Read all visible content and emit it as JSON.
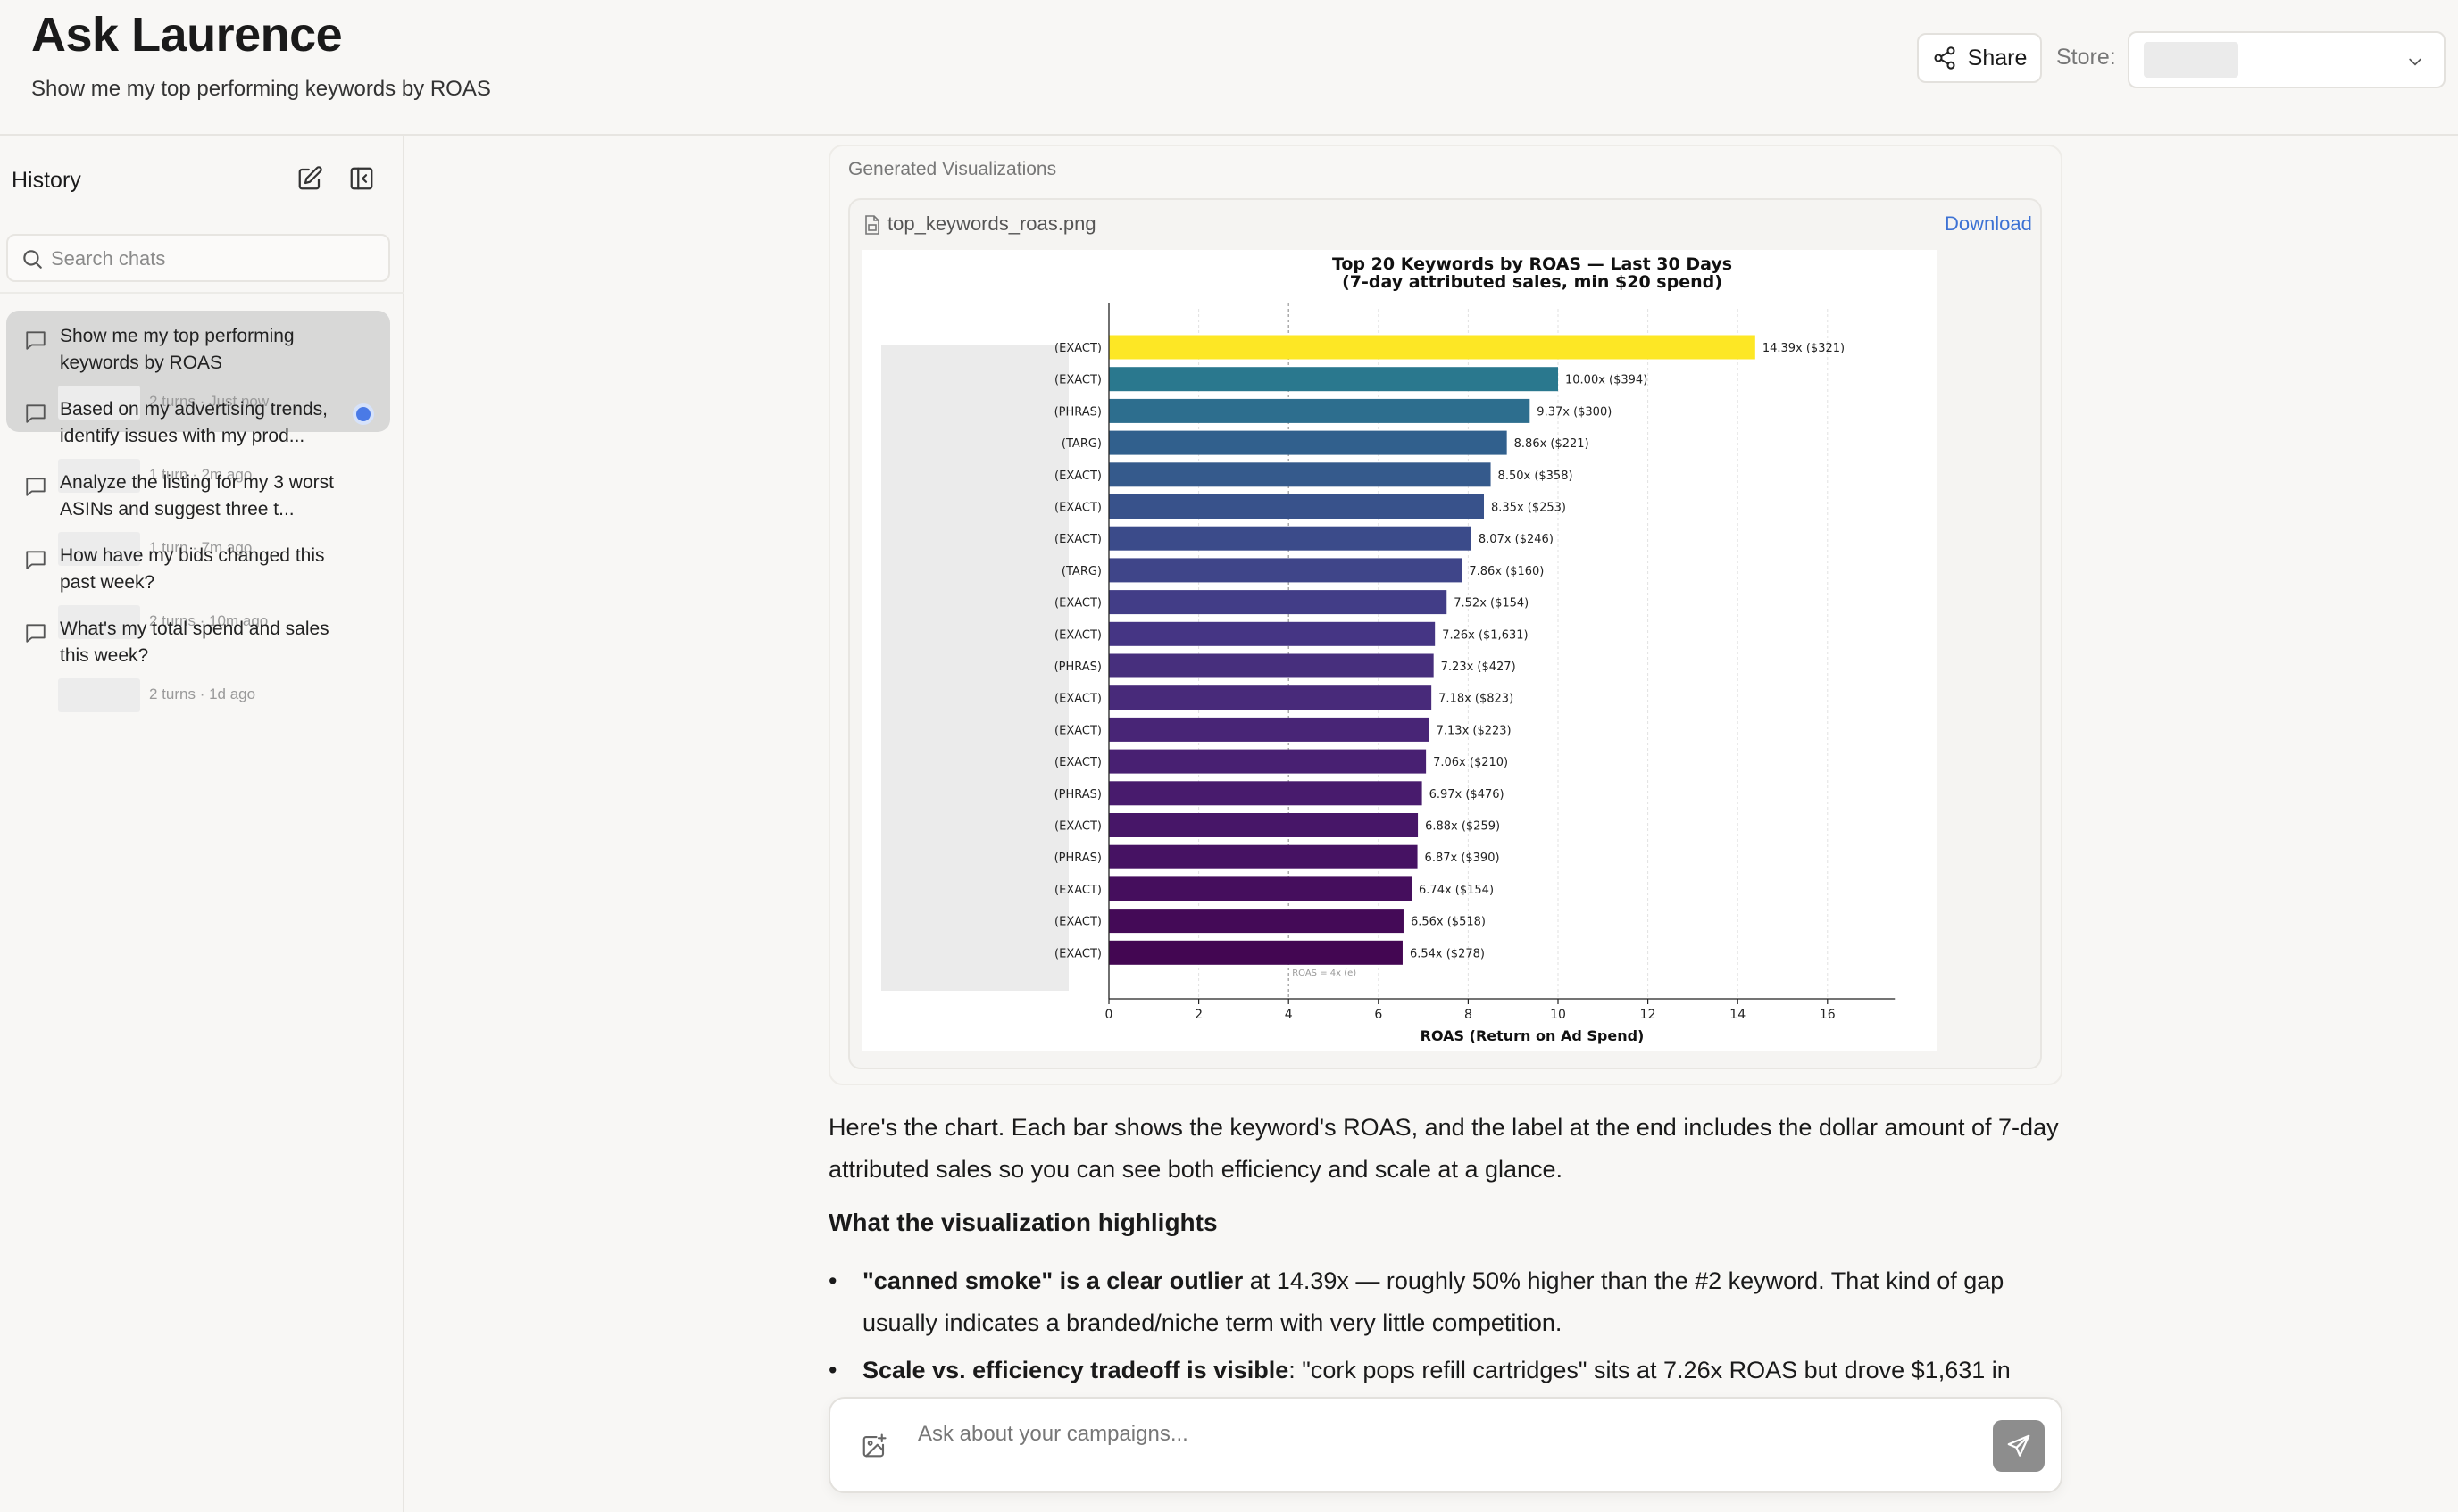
{
  "header": {
    "title": "Ask Laurence",
    "subtitle": "Show me my top performing keywords by ROAS",
    "share_label": "Share",
    "store_label": "Store:"
  },
  "sidebar": {
    "history_label": "History",
    "search_placeholder": "Search chats",
    "chats": [
      {
        "title": "Show me my top performing keywords by ROAS",
        "meta": "2 turns · Just now",
        "active": true
      },
      {
        "title": "Based on my advertising trends, identify issues with my prod...",
        "meta": "1 turn · 2m ago",
        "unread": true
      },
      {
        "title": "Analyze the listing for my 3 worst ASINs and suggest three t...",
        "meta": "1 turn · 7m ago"
      },
      {
        "title": "How have my bids changed this past week?",
        "meta": "2 turns · 10m ago"
      },
      {
        "title": "What's my total spend and sales this week?",
        "meta": "2 turns · 1d ago"
      }
    ]
  },
  "visualizations": {
    "label": "Generated Visualizations",
    "file_name": "top_keywords_roas.png",
    "download_label": "Download"
  },
  "chart_data": {
    "type": "bar",
    "orientation": "horizontal",
    "title": "Top 20 Keywords by ROAS — Last 30 Days",
    "subtitle": "(7-day attributed sales, min $20 spend)",
    "xlabel": "ROAS (Return on Ad Spend)",
    "ylabel": "",
    "xlim": [
      0,
      17.5
    ],
    "xticks": [
      0,
      2,
      4,
      6,
      8,
      10,
      12,
      14,
      16
    ],
    "grid": "vertical",
    "reference_line": {
      "x": 4,
      "label": "ROAS = 4x (e)"
    },
    "categories": [
      "(EXACT)",
      "(EXACT)",
      "(PHRAS)",
      "(TARG)",
      "(EXACT)",
      "(EXACT)",
      "(EXACT)",
      "(TARG)",
      "(EXACT)",
      "(EXACT)",
      "(PHRAS)",
      "(EXACT)",
      "(EXACT)",
      "(EXACT)",
      "(PHRAS)",
      "(EXACT)",
      "(PHRAS)",
      "(EXACT)",
      "(EXACT)",
      "(EXACT)"
    ],
    "values": [
      14.39,
      10.0,
      9.37,
      8.86,
      8.5,
      8.35,
      8.07,
      7.86,
      7.52,
      7.26,
      7.23,
      7.18,
      7.13,
      7.06,
      6.97,
      6.88,
      6.87,
      6.74,
      6.56,
      6.54
    ],
    "labels": [
      "14.39x ($321)",
      "10.00x ($394)",
      "9.37x ($300)",
      "8.86x ($221)",
      "8.50x ($358)",
      "8.35x ($253)",
      "8.07x ($246)",
      "7.86x ($160)",
      "7.52x ($154)",
      "7.26x ($1,631)",
      "7.23x ($427)",
      "7.18x ($823)",
      "7.13x ($223)",
      "7.06x ($210)",
      "6.97x ($476)",
      "6.88x ($259)",
      "6.87x ($390)",
      "6.74x ($154)",
      "6.56x ($518)",
      "6.54x ($278)"
    ],
    "colors": [
      "#fde725",
      "#2a788e",
      "#2d6e8e",
      "#31608d",
      "#355a8c",
      "#38528b",
      "#3b4b8a",
      "#3f4589",
      "#423d87",
      "#453584",
      "#472f7d",
      "#482a7a",
      "#482576",
      "#482072",
      "#481b6d",
      "#471668",
      "#461263",
      "#450e5d",
      "#440a57",
      "#430652"
    ]
  },
  "response": {
    "intro": "Here's the chart. Each bar shows the keyword's ROAS, and the label at the end includes the dollar amount of 7-day attributed sales so you can see both efficiency and scale at a glance.",
    "heading": "What the visualization highlights",
    "bullets": [
      {
        "bold": "\"canned smoke\" is a clear outlier",
        "text": " at 14.39x — roughly 50% higher than the #2 keyword. That kind of gap usually indicates a branded/niche term with very little competition."
      },
      {
        "bold": "Scale vs. efficiency tradeoff is visible",
        "text": ": \"cork pops refill cartridges\" sits at 7.26x ROAS but drove $1,631 in"
      }
    ]
  },
  "composer": {
    "placeholder": "Ask about your campaigns..."
  }
}
